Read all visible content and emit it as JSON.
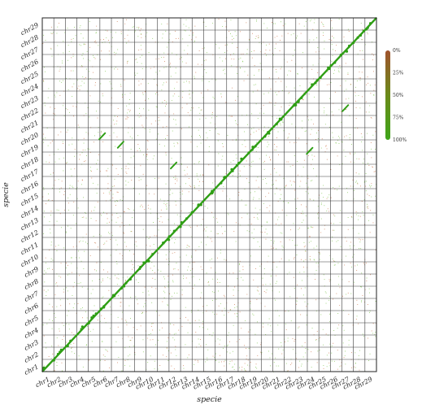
{
  "chart_data": {
    "type": "scatter",
    "subtype": "dot-plot",
    "xlabel": "specie",
    "ylabel": "specie",
    "chromosomes": [
      "chr1",
      "chr2",
      "chr3",
      "chr4",
      "chr5",
      "chr6",
      "chr7",
      "chr8",
      "chr9",
      "chr10",
      "chr11",
      "chr12",
      "chr13",
      "chr14",
      "chr15",
      "chr16",
      "chr17",
      "chr18",
      "chr19",
      "chr20",
      "chr21",
      "chr22",
      "chr23",
      "chr24",
      "chr25",
      "chr26",
      "chr27",
      "chr28",
      "chr29"
    ],
    "legend": {
      "title": "",
      "ticks": [
        "0%",
        "25%",
        "50%",
        "75%",
        "100%"
      ],
      "color_low": "#a0522d",
      "color_high": "#2e9e14",
      "placement": "right"
    },
    "colors": {
      "diagonal": "#2e9e14",
      "noise_high": "#6fbf3a",
      "noise_low": "#c8693a",
      "grid": "#3a3a3a"
    },
    "diagonal": {
      "x": [
        0,
        29
      ],
      "y": [
        0,
        29
      ],
      "identity": "100%"
    },
    "off_diagonal_blocks": [
      {
        "x": 23.2,
        "y": 18.1,
        "identity": "90%"
      },
      {
        "x": 26.3,
        "y": 21.6,
        "identity": "90%"
      },
      {
        "x": 11.4,
        "y": 16.9,
        "identity": "85%"
      },
      {
        "x": 6.8,
        "y": 18.6,
        "identity": "85%"
      },
      {
        "x": 5.2,
        "y": 19.3,
        "identity": "80%"
      }
    ],
    "grid": true,
    "xlim": [
      0,
      29
    ],
    "ylim": [
      0,
      29
    ]
  }
}
